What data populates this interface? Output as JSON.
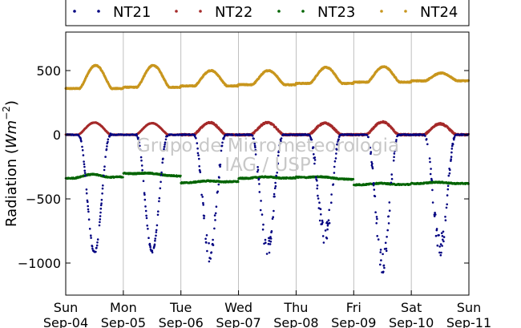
{
  "chart_data": {
    "type": "scatter",
    "title": "",
    "ylabel_main": "Radiation (",
    "ylabel_math": "Wm",
    "ylabel_exp": "−2",
    "ylabel_close": ")",
    "ylim": [
      -1250,
      800
    ],
    "y_ticks": [
      500,
      0,
      -500,
      -1000
    ],
    "y_tick_labels": [
      "500",
      "0",
      "−500",
      "−1000"
    ],
    "x_range_days": [
      0,
      7
    ],
    "x_ticks": [
      {
        "day": "Sun",
        "date": "Sep-04"
      },
      {
        "day": "Mon",
        "date": "Sep-05"
      },
      {
        "day": "Tue",
        "date": "Sep-06"
      },
      {
        "day": "Wed",
        "date": "Sep-07"
      },
      {
        "day": "Thu",
        "date": "Sep-08"
      },
      {
        "day": "Fri",
        "date": "Sep-09"
      },
      {
        "day": "Sat",
        "date": "Sep-10"
      },
      {
        "day": "Sun",
        "date": "Sep-11"
      }
    ],
    "grid": "vertical",
    "legend_placement": "top",
    "watermark": [
      "Grupo de Micrometeorologia",
      "IAG / USP"
    ],
    "series": [
      {
        "name": "NT21",
        "color": "#000080",
        "baseline": 0,
        "daily_peak": [
          -920,
          -910,
          -930,
          -890,
          -790,
          -1000,
          -870
        ]
      },
      {
        "name": "NT22",
        "color": "#a52a2a",
        "baseline": 0,
        "daily_peak": [
          95,
          90,
          95,
          95,
          90,
          100,
          85
        ]
      },
      {
        "name": "NT23",
        "color": "#006400",
        "daily_level": [
          -340,
          -300,
          -375,
          -340,
          -330,
          -390,
          -380
        ]
      },
      {
        "name": "NT24",
        "color": "#c8961e",
        "baseline_range": [
          360,
          420
        ],
        "daily_peak": [
          540,
          540,
          500,
          500,
          525,
          530,
          480
        ]
      }
    ]
  }
}
